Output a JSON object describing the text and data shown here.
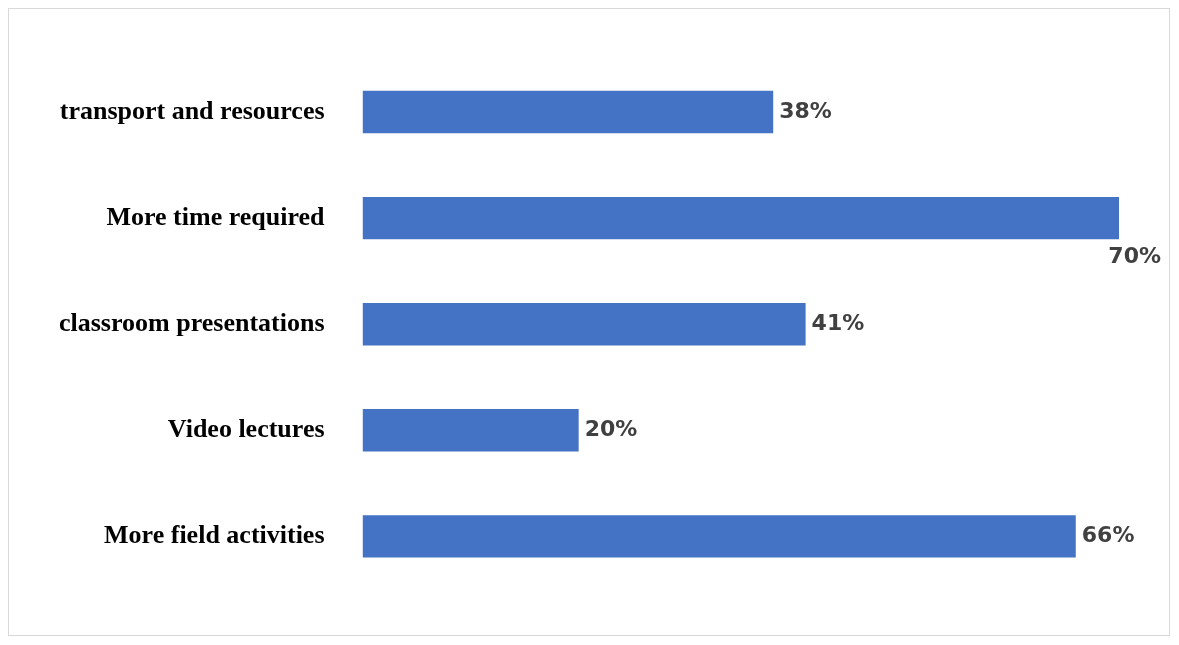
{
  "chart_data": {
    "type": "bar",
    "orientation": "horizontal",
    "categories": [
      "transport and resources",
      "More time required",
      "classroom presentations",
      "Video lectures",
      "More field activities"
    ],
    "values": [
      38,
      70,
      41,
      20,
      66
    ],
    "value_labels": [
      "38%",
      "70%",
      "41%",
      "20%",
      "66%"
    ],
    "color": "#4472c4",
    "grid": false,
    "legend": false
  }
}
